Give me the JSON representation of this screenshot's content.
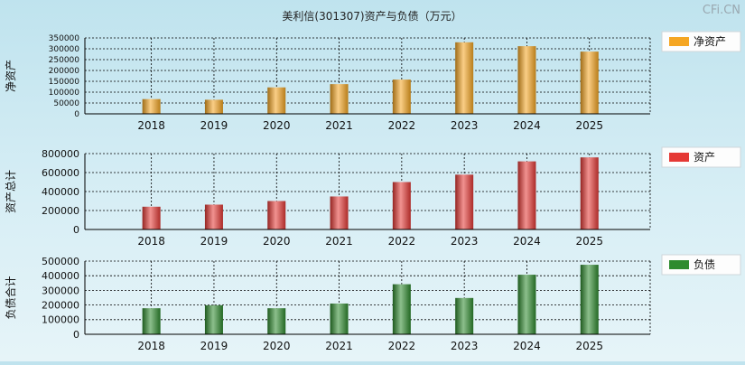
{
  "title": "美利信(301307)资产与负债（万元）",
  "watermark": "CFi.CN",
  "chart_data": [
    {
      "type": "bar",
      "ylabel": "净资产",
      "legend": "净资产",
      "color": "#f5a623",
      "categories": [
        "2018",
        "2019",
        "2020",
        "2021",
        "2022",
        "2023",
        "2024",
        "2025"
      ],
      "values": [
        68000,
        65000,
        122000,
        137000,
        158000,
        330000,
        312000,
        287000
      ],
      "ylim": [
        0,
        350000
      ],
      "yticks": [
        "0",
        "50000",
        "100000",
        "150000",
        "200000",
        "250000",
        "300000",
        "350000"
      ]
    },
    {
      "type": "bar",
      "ylabel": "资产总计",
      "legend": "资产",
      "color": "#e53935",
      "categories": [
        "2018",
        "2019",
        "2020",
        "2021",
        "2022",
        "2023",
        "2024",
        "2025"
      ],
      "values": [
        240000,
        262000,
        300000,
        348000,
        500000,
        578000,
        718000,
        760000
      ],
      "ylim": [
        0,
        800000
      ],
      "yticks": [
        "0",
        "200000",
        "400000",
        "600000",
        "800000"
      ]
    },
    {
      "type": "bar",
      "ylabel": "负债合计",
      "legend": "负债",
      "color": "#2e8b2e",
      "categories": [
        "2018",
        "2019",
        "2020",
        "2021",
        "2022",
        "2023",
        "2024",
        "2025"
      ],
      "values": [
        178000,
        198000,
        178000,
        210000,
        342000,
        248000,
        407000,
        475000
      ],
      "ylim": [
        0,
        500000
      ],
      "yticks": [
        "0",
        "100000",
        "200000",
        "300000",
        "400000",
        "500000"
      ]
    }
  ]
}
